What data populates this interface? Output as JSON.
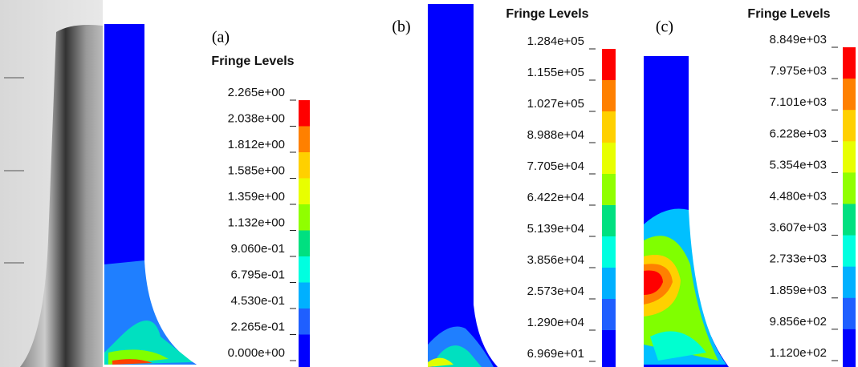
{
  "panels": [
    {
      "label": "(a)",
      "legend_title": "Fringe Levels",
      "levels": [
        "2.265e+00",
        "2.038e+00",
        "1.812e+00",
        "1.585e+00",
        "1.359e+00",
        "1.132e+00",
        "9.060e-01",
        "6.795e-01",
        "4.530e-01",
        "2.265e-01",
        "0.000e+00"
      ]
    },
    {
      "label": "(b)",
      "legend_title": "Fringe Levels",
      "levels": [
        "1.284e+05",
        "1.155e+05",
        "1.027e+05",
        "8.988e+04",
        "7.705e+04",
        "6.422e+04",
        "5.139e+04",
        "3.856e+04",
        "2.573e+04",
        "1.290e+04",
        "6.969e+01"
      ]
    },
    {
      "label": "(c)",
      "legend_title": "Fringe Levels",
      "levels": [
        "8.849e+03",
        "7.975e+03",
        "7.101e+03",
        "6.228e+03",
        "5.354e+03",
        "4.480e+03",
        "3.607e+03",
        "2.733e+03",
        "1.859e+03",
        "9.856e+02",
        "1.120e+02"
      ]
    }
  ]
}
